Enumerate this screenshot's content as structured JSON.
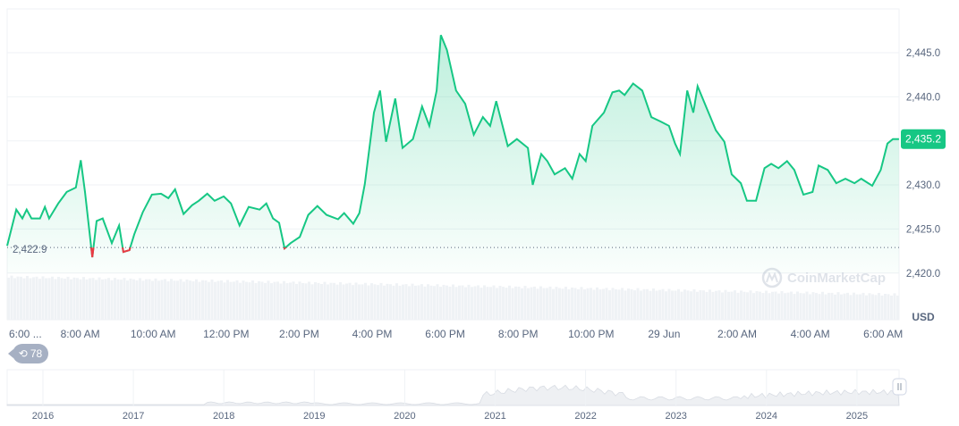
{
  "chart_data": {
    "type": "area",
    "currency_label": "USD",
    "reference_value": 2422.9,
    "reference_label": "2,422.9",
    "current_value": 2435.2,
    "current_label": "2,435.2",
    "ylim": [
      2418,
      2448
    ],
    "y_ticks": [
      2420,
      2425,
      2430,
      2435,
      2440,
      2445
    ],
    "y_tick_labels": [
      "2,420.0",
      "2,425.0",
      "2,430.0",
      "",
      "2,440.0",
      "2,445.0"
    ],
    "x_tick_labels": [
      "6:00 ...",
      "8:00 AM",
      "10:00 AM",
      "12:00 PM",
      "2:00 PM",
      "4:00 PM",
      "6:00 PM",
      "8:00 PM",
      "10:00 PM",
      "29 Jun",
      "2:00 AM",
      "4:00 AM",
      "6:00 AM"
    ],
    "x_tick_times": [
      "06:00",
      "08:00",
      "10:00",
      "12:00",
      "14:00",
      "16:00",
      "18:00",
      "20:00",
      "22:00",
      "00:00",
      "02:00",
      "04:00",
      "06:00"
    ],
    "colors": {
      "up": "#16c784",
      "down": "#ea3943",
      "grid": "#eff2f5",
      "text": "#58667e",
      "volume": "#eff2f5"
    },
    "series": [
      {
        "points": [
          [
            "06:00",
            2423.1
          ],
          [
            "06:15",
            2427.2
          ],
          [
            "06:25",
            2426.2
          ],
          [
            "06:32",
            2427.2
          ],
          [
            "06:40",
            2426.2
          ],
          [
            "06:54",
            2426.2
          ],
          [
            "07:02",
            2427.5
          ],
          [
            "07:09",
            2426.2
          ],
          [
            "07:24",
            2427.9
          ],
          [
            "07:38",
            2429.2
          ],
          [
            "07:53",
            2429.7
          ],
          [
            "08:01",
            2432.8
          ],
          [
            "08:08",
            2429.2
          ],
          [
            "08:20",
            2421.8
          ],
          [
            "08:27",
            2425.9
          ],
          [
            "08:37",
            2426.2
          ],
          [
            "08:52",
            2423.4
          ],
          [
            "09:04",
            2425.4
          ],
          [
            "09:11",
            2422.4
          ],
          [
            "09:21",
            2422.6
          ],
          [
            "09:29",
            2424.4
          ],
          [
            "09:43",
            2426.9
          ],
          [
            "09:58",
            2428.9
          ],
          [
            "10:13",
            2429.0
          ],
          [
            "10:25",
            2428.5
          ],
          [
            "10:36",
            2429.5
          ],
          [
            "10:50",
            2426.7
          ],
          [
            "11:04",
            2427.7
          ],
          [
            "11:15",
            2428.2
          ],
          [
            "11:29",
            2429.0
          ],
          [
            "11:41",
            2428.2
          ],
          [
            "11:56",
            2428.7
          ],
          [
            "12:08",
            2427.9
          ],
          [
            "12:22",
            2425.4
          ],
          [
            "12:37",
            2427.5
          ],
          [
            "12:55",
            2427.2
          ],
          [
            "13:06",
            2427.9
          ],
          [
            "13:17",
            2426.2
          ],
          [
            "13:27",
            2425.7
          ],
          [
            "13:36",
            2422.8
          ],
          [
            "13:46",
            2423.4
          ],
          [
            "14:01",
            2424.1
          ],
          [
            "14:15",
            2426.6
          ],
          [
            "14:30",
            2427.6
          ],
          [
            "14:45",
            2426.6
          ],
          [
            "15:04",
            2426.1
          ],
          [
            "15:14",
            2426.8
          ],
          [
            "15:29",
            2425.6
          ],
          [
            "15:39",
            2426.8
          ],
          [
            "15:48",
            2430.1
          ],
          [
            "16:03",
            2438.2
          ],
          [
            "16:13",
            2440.7
          ],
          [
            "16:23",
            2434.9
          ],
          [
            "16:38",
            2439.8
          ],
          [
            "16:50",
            2434.2
          ],
          [
            "17:07",
            2435.2
          ],
          [
            "17:22",
            2438.9
          ],
          [
            "17:34",
            2436.7
          ],
          [
            "17:46",
            2440.7
          ],
          [
            "17:53",
            2447.0
          ],
          [
            "18:03",
            2445.3
          ],
          [
            "18:18",
            2440.7
          ],
          [
            "18:33",
            2439.2
          ],
          [
            "18:47",
            2435.7
          ],
          [
            "19:02",
            2437.7
          ],
          [
            "19:14",
            2436.7
          ],
          [
            "19:24",
            2439.5
          ],
          [
            "19:43",
            2434.4
          ],
          [
            "19:58",
            2435.2
          ],
          [
            "20:16",
            2434.2
          ],
          [
            "20:24",
            2430.0
          ],
          [
            "20:38",
            2433.5
          ],
          [
            "20:48",
            2432.7
          ],
          [
            "21:00",
            2431.2
          ],
          [
            "21:17",
            2431.9
          ],
          [
            "21:29",
            2430.7
          ],
          [
            "21:41",
            2433.5
          ],
          [
            "21:51",
            2432.7
          ],
          [
            "22:02",
            2436.7
          ],
          [
            "22:21",
            2438.2
          ],
          [
            "22:35",
            2440.5
          ],
          [
            "22:46",
            2440.7
          ],
          [
            "22:55",
            2440.2
          ],
          [
            "23:09",
            2441.5
          ],
          [
            "23:24",
            2440.7
          ],
          [
            "23:39",
            2437.7
          ],
          [
            "23:54",
            2437.2
          ],
          [
            "00:08",
            2436.7
          ],
          [
            "00:18",
            2434.7
          ],
          [
            "00:26",
            2433.5
          ],
          [
            "00:38",
            2440.7
          ],
          [
            "00:48",
            2438.2
          ],
          [
            "00:55",
            2441.2
          ],
          [
            "01:10",
            2438.7
          ],
          [
            "01:25",
            2436.2
          ],
          [
            "01:39",
            2434.9
          ],
          [
            "01:51",
            2431.2
          ],
          [
            "02:06",
            2430.2
          ],
          [
            "02:16",
            2428.2
          ],
          [
            "02:31",
            2428.2
          ],
          [
            "02:45",
            2431.9
          ],
          [
            "02:56",
            2432.4
          ],
          [
            "03:08",
            2431.9
          ],
          [
            "03:22",
            2432.7
          ],
          [
            "03:34",
            2431.7
          ],
          [
            "03:49",
            2428.9
          ],
          [
            "04:04",
            2429.2
          ],
          [
            "04:14",
            2432.2
          ],
          [
            "04:29",
            2431.7
          ],
          [
            "04:43",
            2430.2
          ],
          [
            "04:58",
            2430.7
          ],
          [
            "05:13",
            2430.2
          ],
          [
            "05:24",
            2430.7
          ],
          [
            "05:42",
            2429.9
          ],
          [
            "05:56",
            2431.7
          ],
          [
            "06:07",
            2434.7
          ],
          [
            "06:16",
            2435.2
          ],
          [
            "06:26",
            2435.2
          ]
        ]
      }
    ],
    "overview": {
      "year_labels": [
        "2016",
        "2017",
        "2018",
        "2019",
        "2020",
        "2021",
        "2022",
        "2023",
        "2024",
        "2025"
      ]
    },
    "watermark": "CoinMarketCap"
  },
  "badge": {
    "icon": "history-icon",
    "count": "78"
  }
}
